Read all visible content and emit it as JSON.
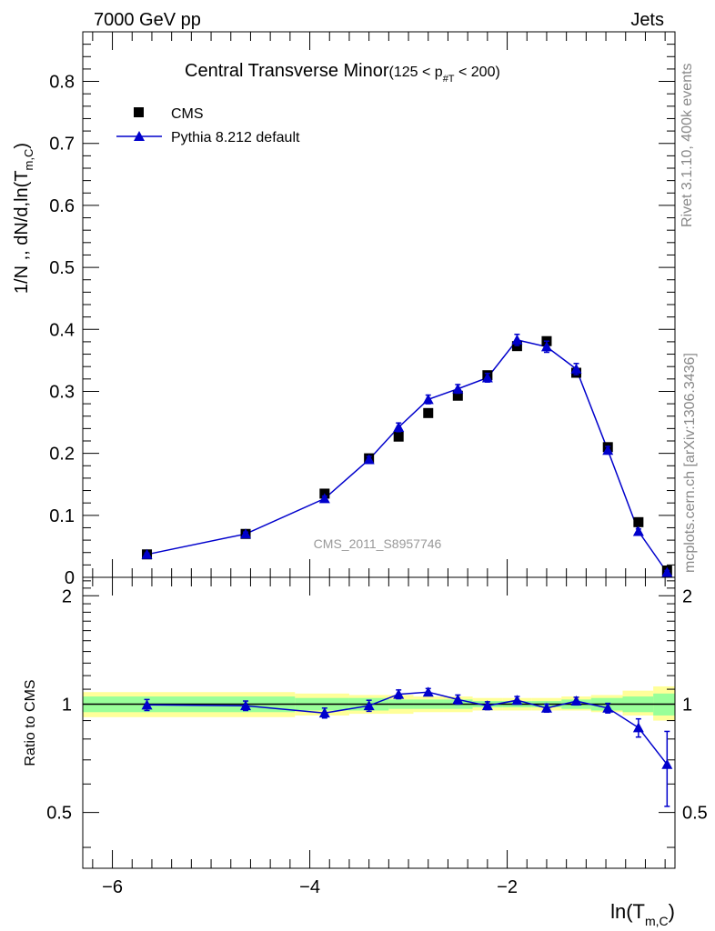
{
  "header": {
    "left_label": "7000 GeV pp",
    "right_label": "Jets"
  },
  "side_labels": {
    "rivet": "Rivet 3.1.10,  400k events",
    "mcplots": "mcplots.cern.ch [arXiv:1306.3436]"
  },
  "colors": {
    "data": "#000000",
    "mc": "#0000cc",
    "band_outer": "#ffff99",
    "band_inner": "#99ff99"
  },
  "chart_data": [
    {
      "type": "scatter",
      "title_main": "Central Transverse Minor",
      "title_sub": "(125 < p",
      "title_sub_index": "#T",
      "title_sub_end": "  < 200)",
      "ylabel": "1/N ,, dN/d,ln(T",
      "ylabel_sub": "m,C",
      "ylabel_end": ")",
      "watermark": "CMS_2011_S8957746",
      "xlim": [
        -6.3,
        -0.3
      ],
      "ylim": [
        0,
        0.88
      ],
      "yticks": [
        0,
        0.1,
        0.2,
        0.3,
        0.4,
        0.5,
        0.6,
        0.7,
        0.8
      ],
      "ytick_labels": [
        "0",
        "0.1",
        "0.2",
        "0.3",
        "0.4",
        "0.5",
        "0.6",
        "0.7",
        "0.8"
      ],
      "legend_position": "top-left",
      "series": [
        {
          "name": "CMS",
          "marker": "square",
          "x": [
            -5.65,
            -4.65,
            -3.85,
            -3.4,
            -3.1,
            -2.8,
            -2.5,
            -2.2,
            -1.9,
            -1.6,
            -1.3,
            -0.98,
            -0.67,
            -0.38
          ],
          "y": [
            0.037,
            0.07,
            0.135,
            0.192,
            0.227,
            0.265,
            0.293,
            0.326,
            0.373,
            0.381,
            0.33,
            0.21,
            0.089,
            0.011
          ]
        },
        {
          "name": "Pythia 8.212 default",
          "marker": "triangle",
          "x": [
            -5.65,
            -4.65,
            -3.85,
            -3.4,
            -3.1,
            -2.8,
            -2.5,
            -2.2,
            -1.9,
            -1.6,
            -1.3,
            -0.98,
            -0.67,
            -0.38
          ],
          "y": [
            0.037,
            0.07,
            0.127,
            0.19,
            0.242,
            0.287,
            0.304,
            0.322,
            0.383,
            0.372,
            0.336,
            0.205,
            0.074,
            0.008
          ],
          "err": [
            0.002,
            0.003,
            0.004,
            0.005,
            0.007,
            0.007,
            0.007,
            0.007,
            0.009,
            0.009,
            0.009,
            0.006,
            0.004,
            0.003
          ]
        }
      ]
    },
    {
      "type": "line",
      "ylabel": "Ratio to CMS",
      "xlabel": "ln(T",
      "xlabel_sub": "m,C",
      "xlabel_end": ")",
      "xlim": [
        -6.3,
        -0.3
      ],
      "ylim": [
        0.35,
        2.25
      ],
      "yticks": [
        0.5,
        1,
        2
      ],
      "ytick_labels": [
        "0.5",
        "1",
        "2"
      ],
      "xticks": [
        -6,
        -4,
        -2
      ],
      "xtick_labels": [
        "−6",
        "−4",
        "−2"
      ],
      "bands": {
        "x_edges": [
          -6.3,
          -4.15,
          -3.6,
          -3.2,
          -2.95,
          -2.65,
          -2.35,
          -2.05,
          -1.75,
          -1.45,
          -1.15,
          -0.83,
          -0.52,
          -0.3
        ],
        "outer_lo": [
          0.92,
          0.93,
          0.94,
          0.94,
          0.95,
          0.95,
          0.96,
          0.96,
          0.96,
          0.96,
          0.95,
          0.93,
          0.9
        ],
        "outer_hi": [
          1.08,
          1.07,
          1.06,
          1.06,
          1.05,
          1.05,
          1.04,
          1.04,
          1.04,
          1.05,
          1.06,
          1.09,
          1.12
        ],
        "inner_lo": [
          0.95,
          0.96,
          0.96,
          0.97,
          0.97,
          0.97,
          0.98,
          0.98,
          0.98,
          0.97,
          0.96,
          0.95,
          0.93
        ],
        "inner_hi": [
          1.05,
          1.04,
          1.04,
          1.03,
          1.03,
          1.03,
          1.02,
          1.02,
          1.02,
          1.03,
          1.04,
          1.05,
          1.07
        ]
      },
      "series": [
        {
          "name": "Pythia 8.212 default",
          "x": [
            -5.65,
            -4.65,
            -3.85,
            -3.4,
            -3.1,
            -2.8,
            -2.5,
            -2.2,
            -1.9,
            -1.6,
            -1.3,
            -0.98,
            -0.67,
            -0.38
          ],
          "y": [
            0.995,
            0.99,
            0.945,
            0.99,
            1.065,
            1.08,
            1.03,
            0.99,
            1.025,
            0.975,
            1.02,
            0.975,
            0.86,
            0.68
          ],
          "err": [
            0.035,
            0.03,
            0.03,
            0.035,
            0.03,
            0.025,
            0.03,
            0.025,
            0.025,
            0.025,
            0.025,
            0.03,
            0.05,
            0.16
          ]
        }
      ]
    }
  ]
}
